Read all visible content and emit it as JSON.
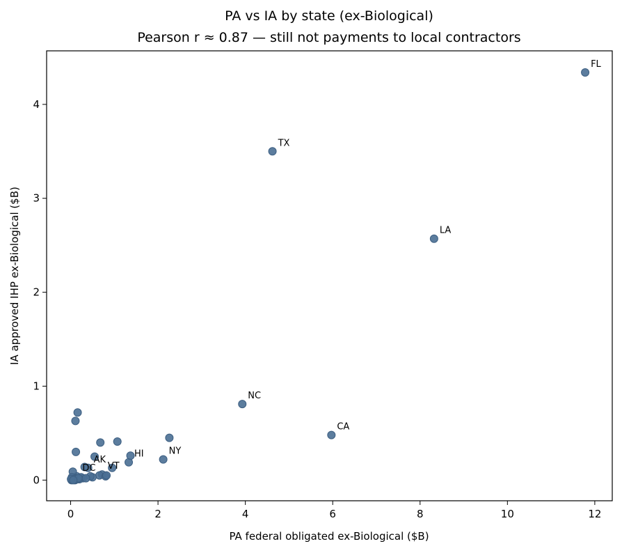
{
  "chart_data": {
    "type": "scatter",
    "title": "PA vs IA by state (ex-Biological)",
    "subtitle": "Pearson r ≈ 0.87 — still not payments to local contractors",
    "xlabel": "PA federal obligated ex-Biological ($B)",
    "ylabel": "IA approved IHP ex-Biological ($B)",
    "xlim": [
      -0.55,
      12.4
    ],
    "ylim": [
      -0.22,
      4.57
    ],
    "xticks": [
      0,
      2,
      4,
      6,
      8,
      10,
      12
    ],
    "yticks": [
      0,
      1,
      2,
      3,
      4
    ],
    "grid": false,
    "marker_color": "#4a6f94",
    "points": [
      {
        "x": 11.78,
        "y": 4.34,
        "label": "FL"
      },
      {
        "x": 4.62,
        "y": 3.5,
        "label": "TX"
      },
      {
        "x": 8.32,
        "y": 2.57,
        "label": "LA"
      },
      {
        "x": 3.93,
        "y": 0.81,
        "label": "NC"
      },
      {
        "x": 5.97,
        "y": 0.48,
        "label": "CA"
      },
      {
        "x": 2.12,
        "y": 0.22,
        "label": "NY"
      },
      {
        "x": 1.33,
        "y": 0.19,
        "label": "HI"
      },
      {
        "x": 0.4,
        "y": 0.13,
        "label": "AK"
      },
      {
        "x": 0.72,
        "y": 0.06,
        "label": "VT"
      },
      {
        "x": 0.14,
        "y": 0.04,
        "label": "DC"
      },
      {
        "x": 2.26,
        "y": 0.45
      },
      {
        "x": 1.07,
        "y": 0.41
      },
      {
        "x": 0.68,
        "y": 0.4
      },
      {
        "x": 0.16,
        "y": 0.72
      },
      {
        "x": 0.11,
        "y": 0.63
      },
      {
        "x": 0.12,
        "y": 0.3
      },
      {
        "x": 1.37,
        "y": 0.26
      },
      {
        "x": 0.55,
        "y": 0.25
      },
      {
        "x": 0.95,
        "y": 0.13
      },
      {
        "x": 0.32,
        "y": 0.14
      },
      {
        "x": 0.66,
        "y": 0.05
      },
      {
        "x": 0.8,
        "y": 0.04
      },
      {
        "x": 0.82,
        "y": 0.05
      },
      {
        "x": 0.5,
        "y": 0.03
      },
      {
        "x": 0.45,
        "y": 0.04
      },
      {
        "x": 0.28,
        "y": 0.02
      },
      {
        "x": 0.24,
        "y": 0.03
      },
      {
        "x": 0.2,
        "y": 0.01
      },
      {
        "x": 0.05,
        "y": 0.09
      },
      {
        "x": 0.02,
        "y": 0.0
      },
      {
        "x": 0.04,
        "y": 0.01
      },
      {
        "x": 0.07,
        "y": 0.02
      },
      {
        "x": 0.1,
        "y": 0.0
      },
      {
        "x": 0.12,
        "y": 0.02
      },
      {
        "x": 0.15,
        "y": 0.01
      },
      {
        "x": 0.03,
        "y": 0.03
      },
      {
        "x": 0.08,
        "y": 0.01
      },
      {
        "x": 0.18,
        "y": 0.02
      },
      {
        "x": 0.01,
        "y": 0.01
      },
      {
        "x": 0.06,
        "y": 0.0
      },
      {
        "x": 0.35,
        "y": 0.02
      }
    ]
  }
}
